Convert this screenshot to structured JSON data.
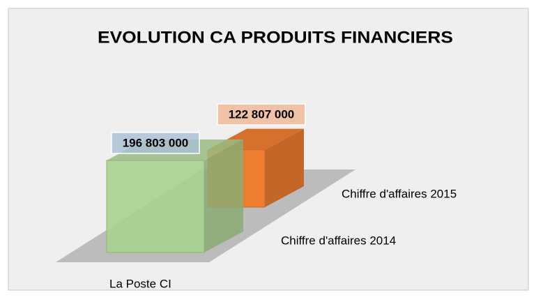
{
  "chart_data": {
    "type": "bar3d",
    "title": "EVOLUTION CA PRODUITS FINANCIERS",
    "categories": [
      "La Poste CI"
    ],
    "series": [
      {
        "name": "Chiffre d'affaires 2014",
        "color": "#a9d18e",
        "values": [
          196803000
        ],
        "value_labels": [
          "196 803 000"
        ]
      },
      {
        "name": "Chiffre d'affaires 2015",
        "color": "#ed7d31",
        "values": [
          122807000
        ],
        "value_labels": [
          "122 807 000"
        ]
      }
    ]
  }
}
